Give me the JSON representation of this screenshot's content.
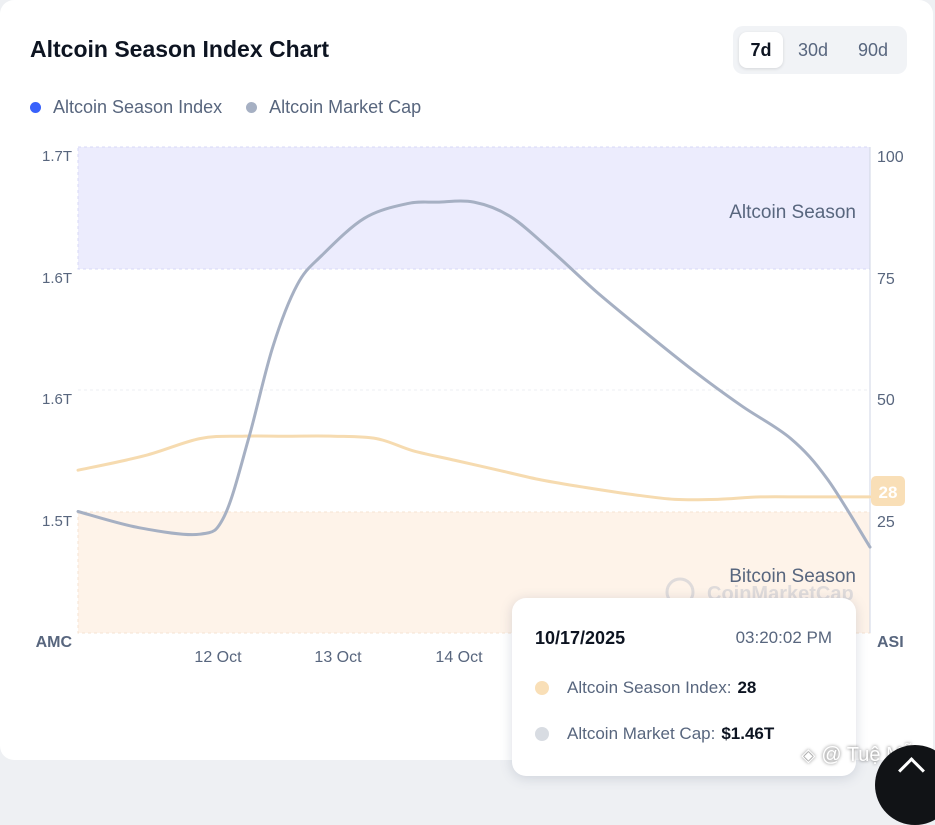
{
  "header": {
    "title": "Altcoin Season Index Chart"
  },
  "range_tabs": [
    {
      "label": "7d",
      "active": true
    },
    {
      "label": "30d",
      "active": false
    },
    {
      "label": "90d",
      "active": false
    }
  ],
  "colors": {
    "asi_legend": "#3861fb",
    "amc_line": "#a6b0c3",
    "asi_line": "#f6dbb0",
    "altcoin_zone": "#ececfd",
    "bitcoin_zone": "#fef3e9",
    "badge_bg": "#f9dfb7"
  },
  "chart_data": {
    "type": "line",
    "title": "Altcoin Season Index Chart",
    "x_ticks": [
      "12 Oct",
      "13 Oct",
      "14 Oct"
    ],
    "x_range": [
      10.85,
      17.35
    ],
    "left_axis": {
      "label": "AMC",
      "ticks": [
        "1.7T",
        "1.6T",
        "1.6T",
        "1.5T"
      ],
      "range": [
        1.4,
        1.7
      ]
    },
    "right_axis": {
      "label": "ASI",
      "ticks": [
        "100",
        "75",
        "50",
        "25"
      ],
      "range": [
        0,
        100
      ]
    },
    "zones": [
      {
        "name": "Altcoin Season",
        "from": 75,
        "to": 100
      },
      {
        "name": "Bitcoin Season",
        "from": 0,
        "to": 25
      }
    ],
    "current_value_badge": "28",
    "watermark": "CoinMarketCap",
    "series": [
      {
        "name": "Altcoin Season Index",
        "axis": "right",
        "x": [
          10.85,
          11.4,
          11.85,
          12.2,
          12.55,
          12.95,
          13.3,
          13.6,
          13.95,
          14.3,
          14.65,
          15.0,
          15.4,
          15.75,
          16.1,
          16.45,
          16.8,
          17.1,
          17.35
        ],
        "values": [
          33.5,
          36.5,
          40.0,
          40.5,
          40.5,
          40.5,
          40.0,
          37.5,
          35.5,
          33.5,
          31.5,
          30.0,
          28.5,
          27.5,
          27.5,
          28.0,
          28.0,
          28.0,
          28.0
        ]
      },
      {
        "name": "Altcoin Market Cap",
        "axis": "left",
        "x": [
          10.85,
          11.35,
          11.85,
          12.05,
          12.25,
          12.45,
          12.65,
          12.85,
          13.2,
          13.55,
          13.8,
          14.1,
          14.4,
          14.75,
          15.1,
          15.5,
          15.9,
          16.3,
          16.7,
          17.0,
          17.35
        ],
        "values": [
          1.475,
          1.465,
          1.461,
          1.472,
          1.52,
          1.577,
          1.615,
          1.633,
          1.656,
          1.665,
          1.666,
          1.666,
          1.657,
          1.635,
          1.611,
          1.586,
          1.562,
          1.54,
          1.52,
          1.495,
          1.453
        ]
      }
    ]
  },
  "legend": [
    {
      "label": "Altcoin Season Index"
    },
    {
      "label": "Altcoin Market Cap"
    }
  ],
  "tooltip": {
    "date": "10/17/2025",
    "time": "03:20:02 PM",
    "asi_label": "Altcoin Season Index:",
    "asi_value": "28",
    "amc_label": "Altcoin Market Cap:",
    "amc_value": "$1.46T"
  },
  "overlay": {
    "watermark_text": "@ Tuệ Mẫn",
    "watermark_icon": "binance-icon"
  }
}
